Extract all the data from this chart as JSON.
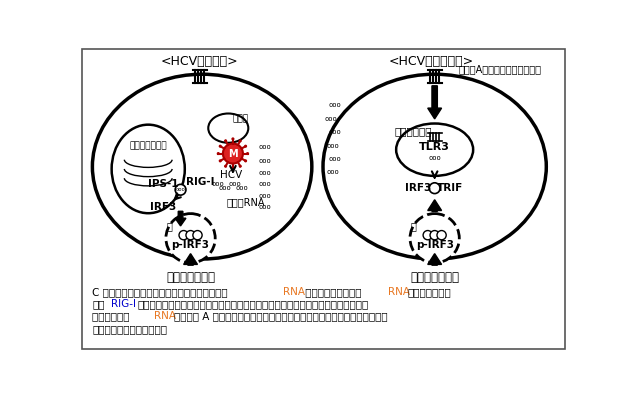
{
  "title_left": "<HCV感染細胞>",
  "title_right": "<HCV非感染細胞>",
  "label_mito": "ミトコンドリア",
  "label_er": "小胞体",
  "label_hcv": "HCV",
  "label_ips1": "IPS-1",
  "label_rigi": "RIG-I",
  "label_irf3_left": "IRF3",
  "label_nucleus_left": "核",
  "label_pirfs_left": "p-IRF3",
  "label_dsrna": "二本鎖RNA",
  "label_antiviral_left": "抗ウイルス作用",
  "label_scavenger": "クラスAスカベンジャー受容体",
  "label_endosome": "エンドソーム",
  "label_tlr3": "TLR3",
  "label_trif": "TRIF",
  "label_irf3_right": "IRF3",
  "label_nucleus_right": "核",
  "label_pirfs_right": "p-IRF3",
  "label_antiviral_right": "抗ウイルス作用",
  "bg_color": "#ffffff",
  "border_color": "#555555",
  "arrow_color": "#000000",
  "text_color": "#000000",
  "red_color": "#cc0000",
  "orange_color": "#e87722",
  "blue_color": "#0000cc"
}
